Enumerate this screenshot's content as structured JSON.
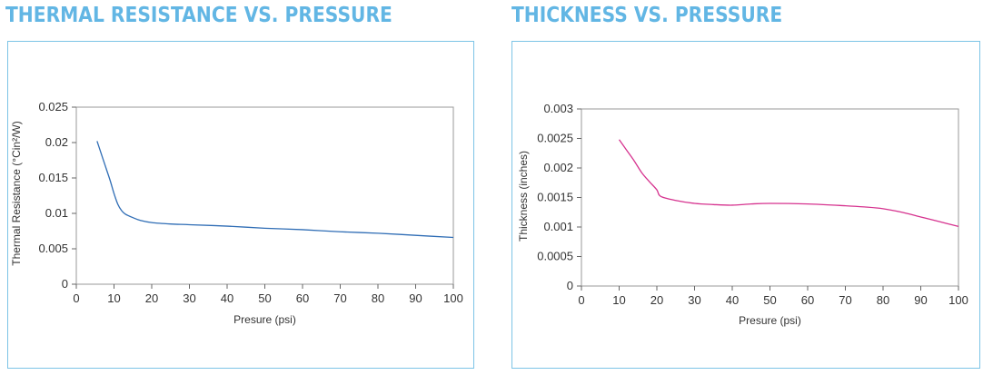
{
  "chart_data": [
    {
      "type": "line",
      "title": "THERMAL RESISTANCE VS. PRESSURE",
      "xlabel": "Presure (psi)",
      "ylabel": "Thermal Resistance (°Cin²/W)",
      "xlim": [
        0,
        100
      ],
      "ylim": [
        0,
        0.025
      ],
      "xticks": [
        "0",
        "10",
        "20",
        "30",
        "40",
        "50",
        "60",
        "70",
        "80",
        "90",
        "100"
      ],
      "yticks": [
        "0",
        "0.005",
        "0.01",
        "0.015",
        "0.02",
        "0.025"
      ],
      "grid": false,
      "color": "#2f6db5",
      "series": [
        {
          "x": [
            5.5,
            7,
            8,
            9,
            10,
            11,
            12,
            13,
            15,
            17,
            20,
            25,
            30,
            40,
            50,
            60,
            70,
            80,
            90,
            100
          ],
          "y": [
            0.0202,
            0.0178,
            0.0162,
            0.0146,
            0.0128,
            0.0113,
            0.0104,
            0.0099,
            0.0094,
            0.009,
            0.0087,
            0.0085,
            0.0084,
            0.0082,
            0.0079,
            0.0077,
            0.0074,
            0.0072,
            0.0069,
            0.0066
          ]
        }
      ]
    },
    {
      "type": "line",
      "title": "THICKNESS VS. PRESSURE",
      "xlabel": "Presure (psi)",
      "ylabel": "Thickness (inches)",
      "xlim": [
        0,
        100
      ],
      "ylim": [
        0,
        0.003
      ],
      "xticks": [
        "0",
        "10",
        "20",
        "30",
        "40",
        "50",
        "60",
        "70",
        "80",
        "90",
        "100"
      ],
      "yticks": [
        "0",
        "0.0005",
        "0.001",
        "0.0015",
        "0.002",
        "0.0025",
        "0.003"
      ],
      "grid": false,
      "color": "#d6338f",
      "series": [
        {
          "x": [
            10,
            12,
            14,
            16,
            18,
            20,
            21,
            25,
            30,
            35,
            40,
            45,
            50,
            60,
            70,
            75,
            80,
            85,
            90,
            95,
            100
          ],
          "y": [
            0.00248,
            0.0023,
            0.00212,
            0.00192,
            0.00177,
            0.00163,
            0.00152,
            0.00145,
            0.0014,
            0.00138,
            0.00137,
            0.00139,
            0.0014,
            0.00139,
            0.00136,
            0.00134,
            0.00131,
            0.00125,
            0.00117,
            0.00109,
            0.00101
          ]
        }
      ]
    }
  ]
}
